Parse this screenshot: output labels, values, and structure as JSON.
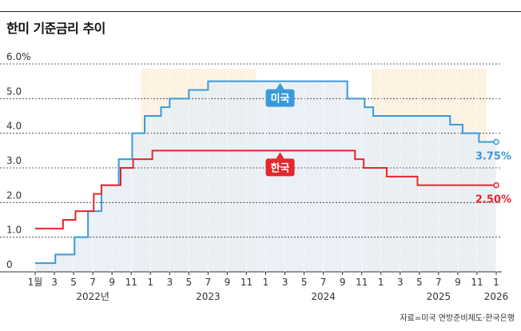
{
  "title": "한미 기준금리 추이",
  "source": "자료=미국 연방준비제도·한국은행",
  "colors": {
    "us": "#3a9ad9",
    "kr": "#e4262f",
    "us_fill": "#e6edf3",
    "band": "#fdf3e3",
    "grid": "#333333"
  },
  "chart_data": {
    "type": "line",
    "x_unit": "months since Jan 2022",
    "ylim": [
      0,
      6
    ],
    "y_ticks": [
      "0",
      "1.0",
      "2.0",
      "3.0",
      "4.0",
      "5.0",
      "6.0%"
    ],
    "x_ticks": [
      {
        "m": 0,
        "label": "1월"
      },
      {
        "m": 2,
        "label": "3"
      },
      {
        "m": 4,
        "label": "5"
      },
      {
        "m": 6,
        "label": "7"
      },
      {
        "m": 8,
        "label": "9"
      },
      {
        "m": 10,
        "label": "11"
      },
      {
        "m": 12,
        "label": "1"
      },
      {
        "m": 14,
        "label": "3"
      },
      {
        "m": 16,
        "label": "5"
      },
      {
        "m": 18,
        "label": "7"
      },
      {
        "m": 20,
        "label": "9"
      },
      {
        "m": 22,
        "label": "11"
      },
      {
        "m": 24,
        "label": "1"
      },
      {
        "m": 26,
        "label": "3"
      },
      {
        "m": 28,
        "label": "5"
      },
      {
        "m": 30,
        "label": "7"
      },
      {
        "m": 32,
        "label": "9"
      },
      {
        "m": 34,
        "label": "11"
      },
      {
        "m": 36,
        "label": "1"
      },
      {
        "m": 38,
        "label": "3"
      },
      {
        "m": 40,
        "label": "5"
      },
      {
        "m": 42,
        "label": "7"
      },
      {
        "m": 44,
        "label": "9"
      },
      {
        "m": 46,
        "label": "11"
      },
      {
        "m": 48,
        "label": "1"
      }
    ],
    "year_labels": [
      {
        "m": 6,
        "label": "2022년"
      },
      {
        "m": 18,
        "label": "2023"
      },
      {
        "m": 30,
        "label": "2024"
      },
      {
        "m": 42,
        "label": "2025"
      },
      {
        "m": 48,
        "label": "2026"
      }
    ],
    "year_bands": [
      [
        11,
        23
      ],
      [
        35,
        47
      ]
    ],
    "series": [
      {
        "name": "미국",
        "color": "#3a9ad9",
        "end_label": "3.75%",
        "points": [
          [
            0,
            0.25
          ],
          [
            2.1,
            0.5
          ],
          [
            4.1,
            1.0
          ],
          [
            5.5,
            1.75
          ],
          [
            6.9,
            2.5
          ],
          [
            8.7,
            3.25
          ],
          [
            10.1,
            4.0
          ],
          [
            11.4,
            4.5
          ],
          [
            13.1,
            4.75
          ],
          [
            14.0,
            5.0
          ],
          [
            16.0,
            5.25
          ],
          [
            18.0,
            5.5
          ],
          [
            32.5,
            5.0
          ],
          [
            34.3,
            4.75
          ],
          [
            35.2,
            4.5
          ],
          [
            40.8,
            4.5
          ],
          [
            43.2,
            4.25
          ],
          [
            44.5,
            4.0
          ],
          [
            46.2,
            3.75
          ],
          [
            48,
            3.75
          ]
        ]
      },
      {
        "name": "한국",
        "color": "#e4262f",
        "end_label": "2.50%",
        "points": [
          [
            0,
            1.25
          ],
          [
            2.9,
            1.5
          ],
          [
            4.2,
            1.75
          ],
          [
            6.1,
            2.25
          ],
          [
            6.9,
            2.5
          ],
          [
            8.9,
            3.0
          ],
          [
            10.2,
            3.25
          ],
          [
            12.2,
            3.5
          ],
          [
            33.3,
            3.25
          ],
          [
            34.2,
            3.0
          ],
          [
            36.6,
            2.75
          ],
          [
            39.8,
            2.5
          ],
          [
            48,
            2.5
          ]
        ]
      }
    ]
  }
}
